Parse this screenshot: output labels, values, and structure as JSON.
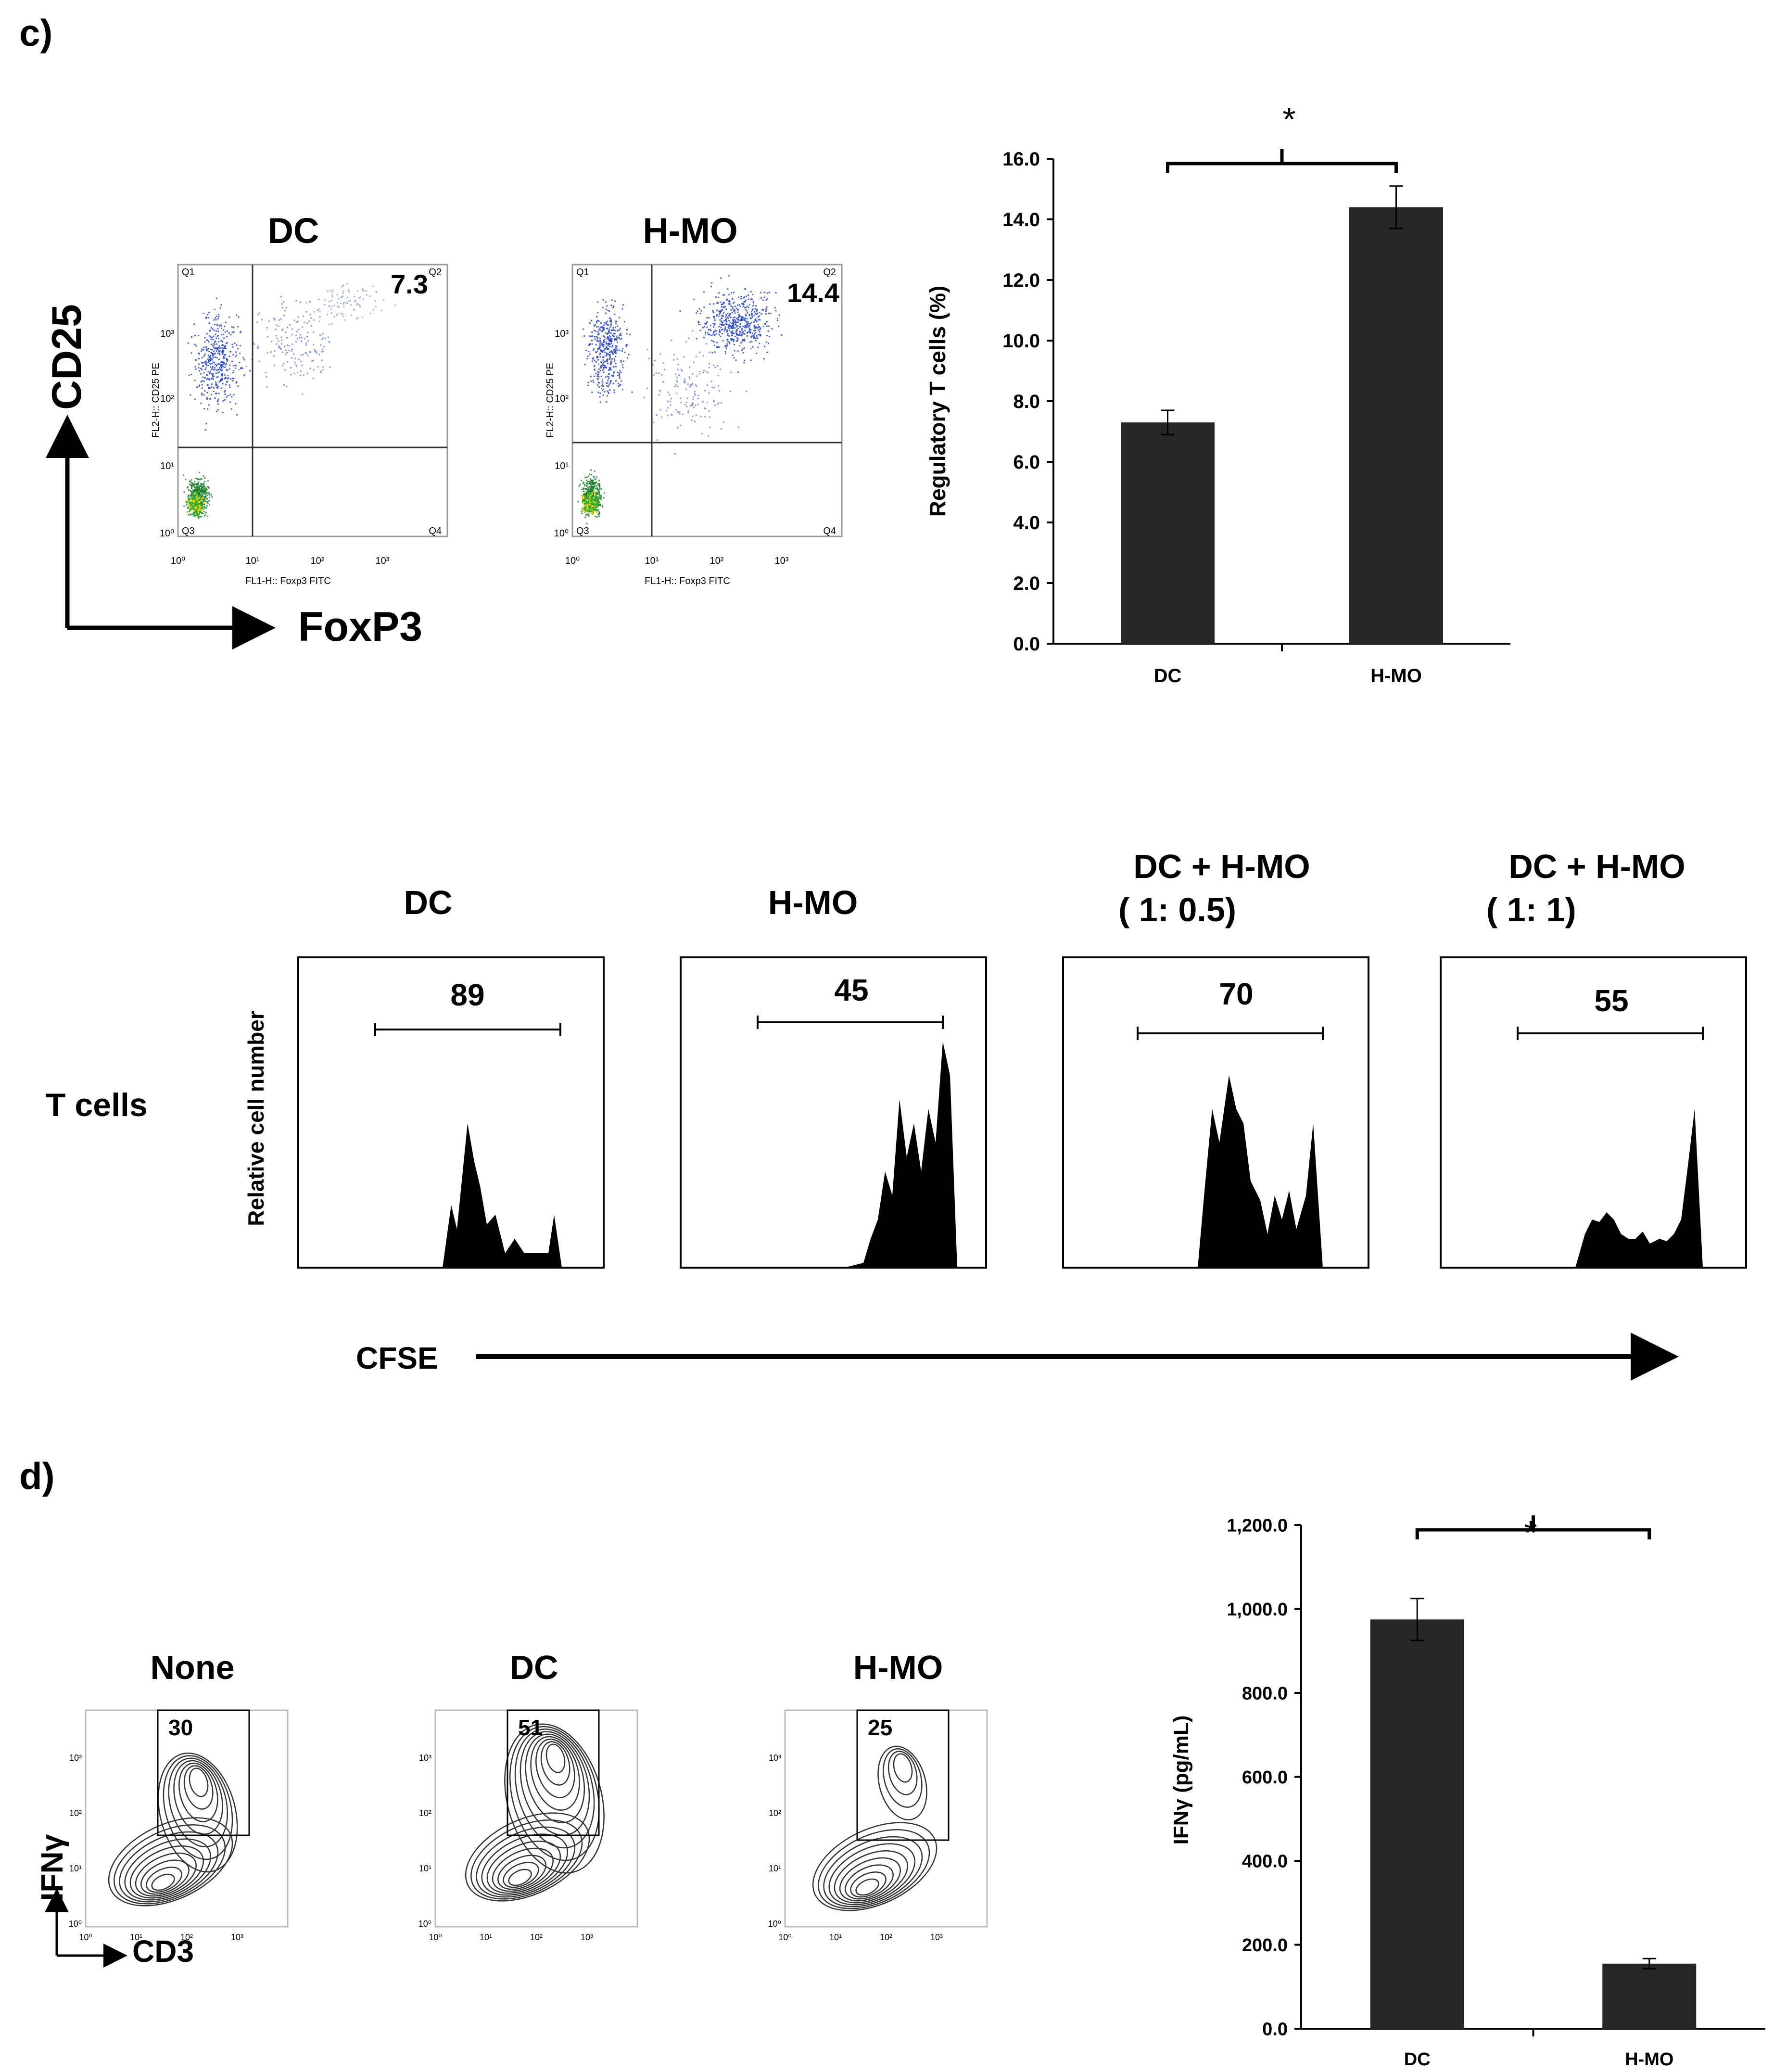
{
  "panel_c": {
    "label": "c)",
    "flow": {
      "axis_y": "CD25",
      "axis_x": "FoxP3",
      "plots": [
        {
          "title": "DC",
          "value": "7.3",
          "xlab": "FL1-H:: Foxp3 FITC",
          "ylab": "FL2-H:: CD25 PE",
          "q": [
            "Q1",
            "Q2",
            "Q3",
            "Q4"
          ]
        },
        {
          "title": "H-MO",
          "value": "14.4",
          "xlab": "FL1-H:: Foxp3 FITC",
          "ylab": "FL2-H:: CD25 PE",
          "q": [
            "Q1",
            "Q2",
            "Q3",
            "Q4"
          ]
        }
      ],
      "ticks": [
        "10⁰",
        "10¹",
        "10²",
        "10³"
      ]
    },
    "significance": "*"
  },
  "panel_cfse": {
    "row_label": "T cells",
    "ylabel": "Relative cell number",
    "xlabel": "CFSE",
    "histograms": [
      {
        "title": "DC",
        "subtitle": "",
        "value": "89"
      },
      {
        "title": "H-MO",
        "subtitle": "",
        "value": "45"
      },
      {
        "title": "DC + H-MO",
        "subtitle": "( 1: 0.5)",
        "value": "70"
      },
      {
        "title": "DC + H-MO",
        "subtitle": "( 1: 1)",
        "value": "55"
      }
    ]
  },
  "panel_d": {
    "label": "d)",
    "axis_y": "IFNγ",
    "axis_x": "CD3",
    "contours": [
      {
        "title": "None",
        "value": "30"
      },
      {
        "title": "DC",
        "value": "51"
      },
      {
        "title": "H-MO",
        "value": "25"
      }
    ],
    "ticks": [
      "10⁰",
      "10¹",
      "10²",
      "10³"
    ],
    "significance": "*"
  },
  "chart_data": [
    {
      "type": "bar",
      "title": "",
      "categories": [
        "DC",
        "H-MO"
      ],
      "values": [
        7.3,
        14.4
      ],
      "errors": [
        0.4,
        0.7
      ],
      "xlabel": "",
      "ylabel": "Regulatory  T cells (%)",
      "ylim": [
        0,
        16
      ],
      "yticks": [
        "0.0",
        "2.0",
        "4.0",
        "6.0",
        "8.0",
        "10.0",
        "12.0",
        "14.0",
        "16.0"
      ],
      "bar_color": "#262626"
    },
    {
      "type": "bar",
      "title": "",
      "categories": [
        "DC",
        "H-MO"
      ],
      "values": [
        975,
        155
      ],
      "errors": [
        50,
        12
      ],
      "xlabel": "",
      "ylabel": "IFNγ (pg/mL)",
      "ylim": [
        0,
        1200
      ],
      "yticks": [
        "0.0",
        "200.0",
        "400.0",
        "600.0",
        "800.0",
        "1,000.0",
        "1,200.0"
      ],
      "bar_color": "#262626"
    }
  ]
}
